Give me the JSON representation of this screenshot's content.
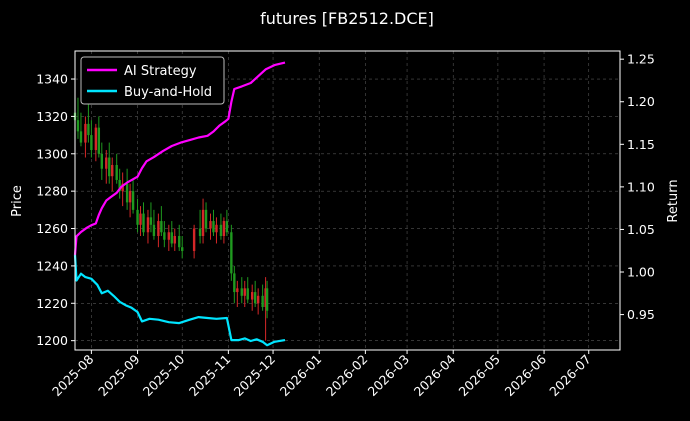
{
  "chart_data": {
    "type": "line",
    "title": "futures [FB2512.DCE]",
    "ylabel": "Price",
    "y2label": "Return",
    "x_ticks": [
      "2025-08",
      "2025-09",
      "2025-10",
      "2025-11",
      "2025-12",
      "2026-01",
      "2026-02",
      "2026-03",
      "2026-04",
      "2026-05",
      "2026-06",
      "2026-07"
    ],
    "xlim": [
      "2025-07-21",
      "2026-07-22"
    ],
    "ylim": [
      1195,
      1355
    ],
    "y_ticks": [
      1200,
      1220,
      1240,
      1260,
      1280,
      1300,
      1320,
      1340
    ],
    "y2lim": [
      0.9084,
      1.2596
    ],
    "y2_ticks": [
      0.95,
      1.0,
      1.05,
      1.1,
      1.15,
      1.2,
      1.25
    ],
    "grid": true,
    "legend_position": "top-left",
    "colors": {
      "up": "#d62728",
      "down": "#1f9a1f",
      "ai": "#ff00ff",
      "bh": "#00e5ff"
    },
    "candles": [
      [
        "2025-07-21",
        1322,
        1325,
        1312,
        1318
      ],
      [
        "2025-07-23",
        1318,
        1330,
        1308,
        1312
      ],
      [
        "2025-07-25",
        1312,
        1322,
        1304,
        1306
      ],
      [
        "2025-07-28",
        1306,
        1320,
        1298,
        1316
      ],
      [
        "2025-07-30",
        1316,
        1328,
        1306,
        1310
      ],
      [
        "2025-08-01",
        1310,
        1318,
        1298,
        1302
      ],
      [
        "2025-08-04",
        1302,
        1316,
        1296,
        1314
      ],
      [
        "2025-08-06",
        1314,
        1320,
        1298,
        1300
      ],
      [
        "2025-08-08",
        1300,
        1306,
        1286,
        1292
      ],
      [
        "2025-08-11",
        1292,
        1302,
        1284,
        1298
      ],
      [
        "2025-08-13",
        1298,
        1306,
        1284,
        1288
      ],
      [
        "2025-08-15",
        1288,
        1298,
        1280,
        1294
      ],
      [
        "2025-08-18",
        1294,
        1300,
        1284,
        1286
      ],
      [
        "2025-08-20",
        1286,
        1292,
        1276,
        1280
      ],
      [
        "2025-08-22",
        1280,
        1290,
        1272,
        1284
      ],
      [
        "2025-08-25",
        1284,
        1292,
        1270,
        1274
      ],
      [
        "2025-08-27",
        1274,
        1284,
        1266,
        1280
      ],
      [
        "2025-08-29",
        1280,
        1286,
        1268,
        1270
      ],
      [
        "2025-09-01",
        1270,
        1276,
        1258,
        1262
      ],
      [
        "2025-09-03",
        1262,
        1272,
        1256,
        1268
      ],
      [
        "2025-09-05",
        1268,
        1274,
        1256,
        1258
      ],
      [
        "2025-09-08",
        1258,
        1270,
        1252,
        1266
      ],
      [
        "2025-09-10",
        1266,
        1274,
        1258,
        1262
      ],
      [
        "2025-09-12",
        1262,
        1270,
        1254,
        1256
      ],
      [
        "2025-09-15",
        1256,
        1268,
        1250,
        1264
      ],
      [
        "2025-09-17",
        1264,
        1272,
        1256,
        1258
      ],
      [
        "2025-09-19",
        1258,
        1264,
        1250,
        1254
      ],
      [
        "2025-09-22",
        1254,
        1262,
        1248,
        1258
      ],
      [
        "2025-09-24",
        1258,
        1264,
        1250,
        1252
      ],
      [
        "2025-09-26",
        1252,
        1260,
        1248,
        1256
      ],
      [
        "2025-09-29",
        1256,
        1262,
        1248,
        1250
      ],
      [
        "2025-10-01",
        1250,
        1256,
        1244,
        1248
      ],
      [
        "2025-10-09",
        1248,
        1262,
        1244,
        1260
      ],
      [
        "2025-10-13",
        1260,
        1270,
        1252,
        1256
      ],
      [
        "2025-10-15",
        1256,
        1276,
        1252,
        1270
      ],
      [
        "2025-10-17",
        1270,
        1274,
        1258,
        1260
      ],
      [
        "2025-10-20",
        1260,
        1268,
        1254,
        1264
      ],
      [
        "2025-10-22",
        1264,
        1270,
        1256,
        1258
      ],
      [
        "2025-10-24",
        1258,
        1266,
        1252,
        1262
      ],
      [
        "2025-10-27",
        1262,
        1268,
        1254,
        1256
      ],
      [
        "2025-10-29",
        1256,
        1266,
        1252,
        1264
      ],
      [
        "2025-10-31",
        1264,
        1270,
        1256,
        1258
      ],
      [
        "2025-11-03",
        1258,
        1262,
        1232,
        1236
      ],
      [
        "2025-11-05",
        1236,
        1240,
        1220,
        1226
      ],
      [
        "2025-11-07",
        1226,
        1232,
        1218,
        1228
      ],
      [
        "2025-11-10",
        1228,
        1234,
        1220,
        1224
      ],
      [
        "2025-11-12",
        1224,
        1232,
        1218,
        1228
      ],
      [
        "2025-11-14",
        1228,
        1234,
        1220,
        1222
      ],
      [
        "2025-11-17",
        1222,
        1230,
        1216,
        1226
      ],
      [
        "2025-11-19",
        1226,
        1232,
        1218,
        1220
      ],
      [
        "2025-11-21",
        1220,
        1228,
        1214,
        1224
      ],
      [
        "2025-11-24",
        1224,
        1230,
        1216,
        1218
      ],
      [
        "2025-11-26",
        1218,
        1234,
        1200,
        1228
      ],
      [
        "2025-11-27",
        1228,
        1232,
        1212,
        1216
      ]
    ],
    "series": [
      {
        "name": "AI Strategy",
        "axis": "right",
        "color": "#ff00ff",
        "points": [
          [
            "2025-07-21",
            1.02
          ],
          [
            "2025-07-22",
            1.042
          ],
          [
            "2025-07-25",
            1.047
          ],
          [
            "2025-07-29",
            1.052
          ],
          [
            "2025-08-01",
            1.055
          ],
          [
            "2025-08-04",
            1.057
          ],
          [
            "2025-08-06",
            1.067
          ],
          [
            "2025-08-08",
            1.075
          ],
          [
            "2025-08-11",
            1.084
          ],
          [
            "2025-08-14",
            1.088
          ],
          [
            "2025-08-18",
            1.093
          ],
          [
            "2025-08-21",
            1.1
          ],
          [
            "2025-08-25",
            1.105
          ],
          [
            "2025-08-28",
            1.108
          ],
          [
            "2025-09-01",
            1.112
          ],
          [
            "2025-09-04",
            1.122
          ],
          [
            "2025-09-07",
            1.13
          ],
          [
            "2025-09-12",
            1.135
          ],
          [
            "2025-09-18",
            1.142
          ],
          [
            "2025-09-24",
            1.148
          ],
          [
            "2025-09-30",
            1.152
          ],
          [
            "2025-10-06",
            1.155
          ],
          [
            "2025-10-12",
            1.158
          ],
          [
            "2025-10-18",
            1.16
          ],
          [
            "2025-10-22",
            1.165
          ],
          [
            "2025-10-26",
            1.172
          ],
          [
            "2025-10-30",
            1.177
          ],
          [
            "2025-11-01",
            1.18
          ],
          [
            "2025-11-03",
            1.2
          ],
          [
            "2025-11-05",
            1.215
          ],
          [
            "2025-11-10",
            1.218
          ],
          [
            "2025-11-16",
            1.222
          ],
          [
            "2025-11-21",
            1.23
          ],
          [
            "2025-11-26",
            1.238
          ],
          [
            "2025-12-02",
            1.243
          ],
          [
            "2025-12-09",
            1.246
          ]
        ]
      },
      {
        "name": "Buy-and-Hold",
        "axis": "right",
        "color": "#00e5ff",
        "points": [
          [
            "2025-07-21",
            1.02
          ],
          [
            "2025-07-22",
            0.99
          ],
          [
            "2025-07-25",
            0.998
          ],
          [
            "2025-07-28",
            0.994
          ],
          [
            "2025-08-01",
            0.992
          ],
          [
            "2025-08-05",
            0.985
          ],
          [
            "2025-08-08",
            0.975
          ],
          [
            "2025-08-12",
            0.978
          ],
          [
            "2025-08-16",
            0.972
          ],
          [
            "2025-08-20",
            0.965
          ],
          [
            "2025-08-24",
            0.961
          ],
          [
            "2025-08-28",
            0.958
          ],
          [
            "2025-09-01",
            0.953
          ],
          [
            "2025-09-04",
            0.942
          ],
          [
            "2025-09-09",
            0.945
          ],
          [
            "2025-09-15",
            0.944
          ],
          [
            "2025-09-22",
            0.941
          ],
          [
            "2025-09-29",
            0.94
          ],
          [
            "2025-10-06",
            0.944
          ],
          [
            "2025-10-12",
            0.947
          ],
          [
            "2025-10-18",
            0.946
          ],
          [
            "2025-10-24",
            0.945
          ],
          [
            "2025-10-31",
            0.946
          ],
          [
            "2025-11-03",
            0.92
          ],
          [
            "2025-11-08",
            0.92
          ],
          [
            "2025-11-12",
            0.922
          ],
          [
            "2025-11-16",
            0.919
          ],
          [
            "2025-11-20",
            0.921
          ],
          [
            "2025-11-24",
            0.918
          ],
          [
            "2025-11-27",
            0.914
          ],
          [
            "2025-12-02",
            0.918
          ],
          [
            "2025-12-09",
            0.92
          ]
        ]
      }
    ]
  }
}
